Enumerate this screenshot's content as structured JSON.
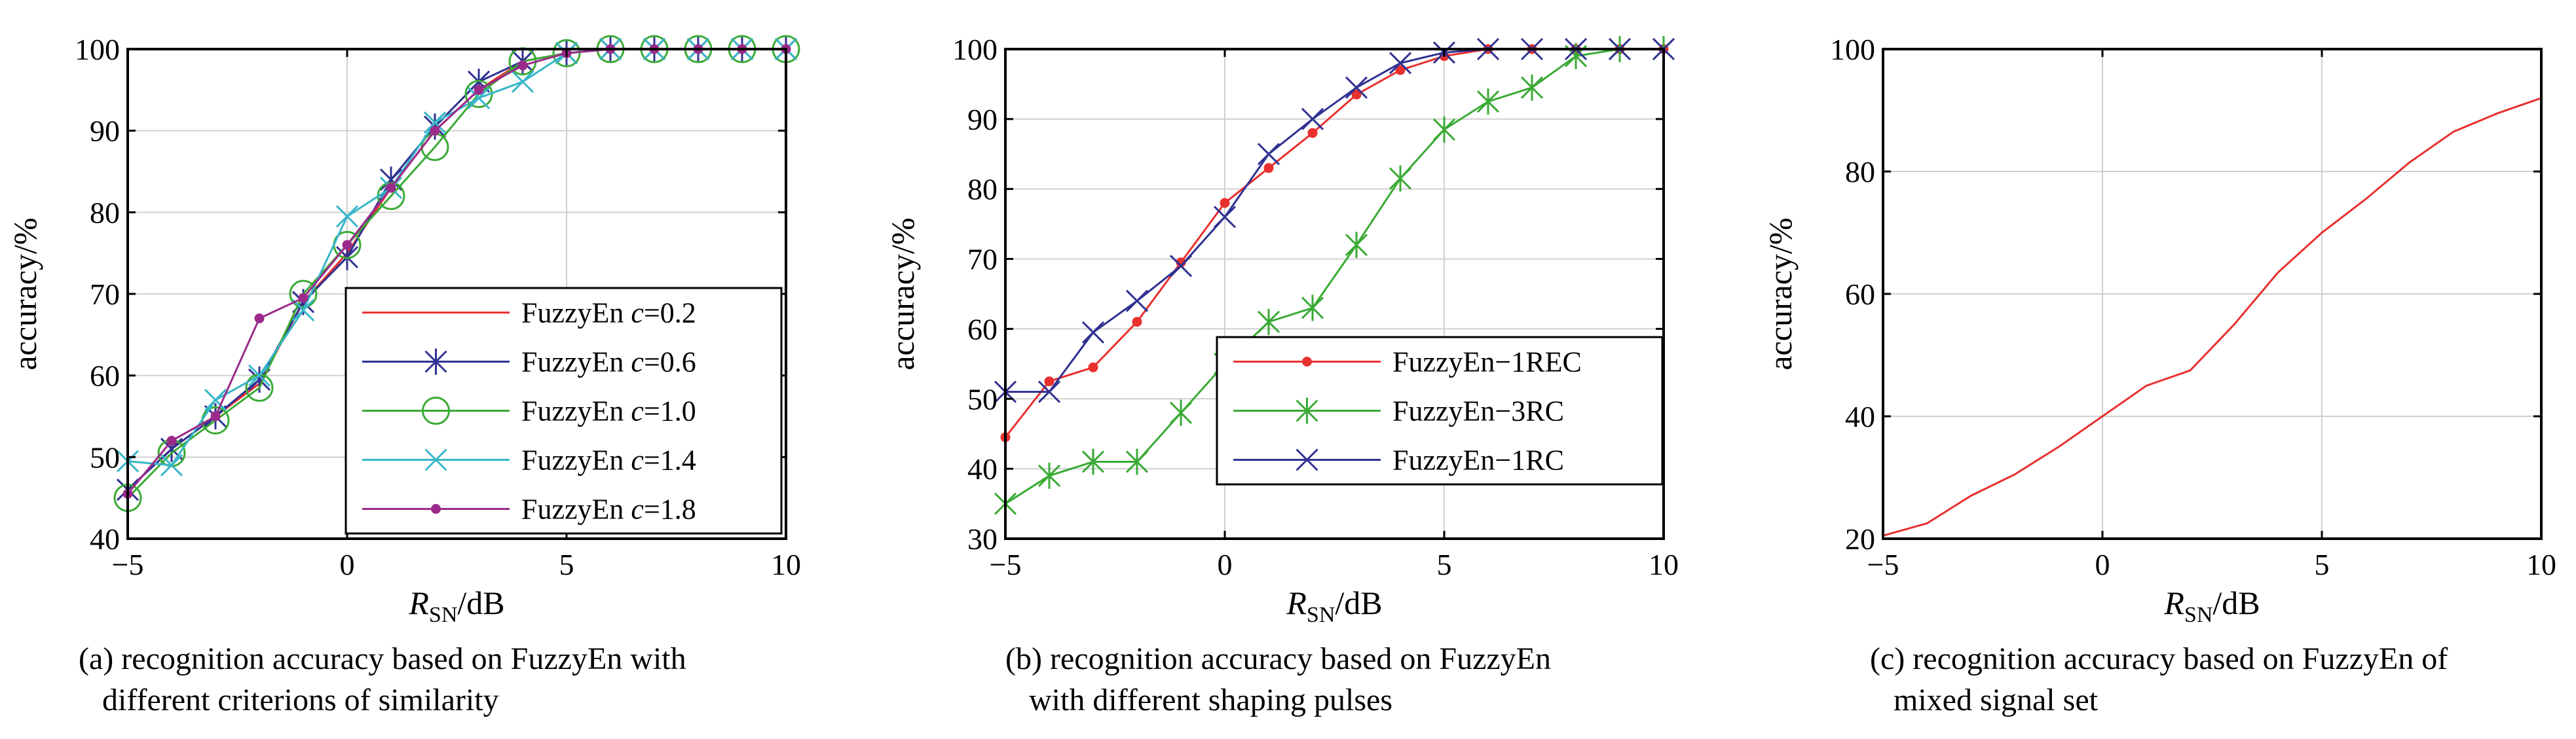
{
  "chart_data": [
    {
      "type": "line",
      "caption": [
        "(a) recognition accuracy based on FuzzyEn with",
        "different criterions of similarity"
      ],
      "xlabel": {
        "main": "R",
        "sub": "SN",
        "unit": "/dB"
      },
      "ylabel": "accuracy/%",
      "xlim": [
        -5,
        10
      ],
      "ylim": [
        40,
        100
      ],
      "xticks": [
        -5,
        0,
        5,
        10
      ],
      "yticks": [
        40,
        50,
        60,
        70,
        80,
        90,
        100
      ],
      "xtick_labels": [
        "−5",
        "0",
        "5",
        "10"
      ],
      "ytick_labels": [
        "40",
        "50",
        "60",
        "70",
        "80",
        "90",
        "100"
      ],
      "grid": true,
      "legend_position": "bottom-right",
      "x": [
        -5,
        -4,
        -3,
        -2,
        -1,
        0,
        1,
        2,
        3,
        4,
        5,
        6,
        7,
        8,
        9,
        10
      ],
      "series": [
        {
          "name": "FuzzyEn c=0.2",
          "name_parts": [
            "FuzzyEn ",
            "c",
            "=0.2"
          ],
          "color": "#e8312f",
          "marker": "none",
          "values": [
            46,
            51,
            55,
            59,
            69,
            75,
            83,
            90,
            95,
            98.5,
            99.5,
            100,
            100,
            100,
            100,
            100
          ]
        },
        {
          "name": "FuzzyEn c=0.6",
          "name_parts": [
            "FuzzyEn ",
            "c",
            "=0.6"
          ],
          "color": "#2f3192",
          "marker": "asterisk",
          "values": [
            46,
            51,
            55,
            59.5,
            69,
            74.5,
            84,
            90.5,
            96,
            98.5,
            99.5,
            100,
            100,
            100,
            100,
            100
          ]
        },
        {
          "name": "FuzzyEn c=1.0",
          "name_parts": [
            "FuzzyEn ",
            "c",
            "=1.0"
          ],
          "color": "#3aaa35",
          "marker": "circle",
          "values": [
            45,
            50.5,
            54.5,
            58.5,
            70,
            76,
            82,
            88,
            94.5,
            98.5,
            99.5,
            100,
            100,
            100,
            100,
            100
          ]
        },
        {
          "name": "FuzzyEn c=1.4",
          "name_parts": [
            "FuzzyEn ",
            "c",
            "=1.4"
          ],
          "color": "#38b6c8",
          "marker": "x",
          "values": [
            49.5,
            49,
            57,
            60,
            68,
            79.5,
            83,
            91,
            94,
            96,
            99.5,
            100,
            100,
            100,
            100,
            100
          ]
        },
        {
          "name": "FuzzyEn c=1.8",
          "name_parts": [
            "FuzzyEn ",
            "c",
            "=1.8"
          ],
          "color": "#9c2a8a",
          "marker": "dot",
          "values": [
            45.5,
            52,
            55,
            67,
            69.5,
            76,
            83,
            90,
            95,
            98,
            99.5,
            100,
            100,
            100,
            100,
            100
          ]
        }
      ]
    },
    {
      "type": "line",
      "caption": [
        "(b) recognition accuracy based on FuzzyEn",
        "with different shaping pulses"
      ],
      "xlabel": {
        "main": "R",
        "sub": "SN",
        "unit": "/dB"
      },
      "ylabel": "accuracy/%",
      "xlim": [
        -5,
        10
      ],
      "ylim": [
        30,
        100
      ],
      "xticks": [
        -5,
        0,
        5,
        10
      ],
      "yticks": [
        30,
        40,
        50,
        60,
        70,
        80,
        90,
        100
      ],
      "xtick_labels": [
        "−5",
        "0",
        "5",
        "10"
      ],
      "ytick_labels": [
        "30",
        "40",
        "50",
        "60",
        "70",
        "80",
        "90",
        "100"
      ],
      "grid": true,
      "legend_position": "bottom-right",
      "x": [
        -5,
        -4,
        -3,
        -2,
        -1,
        0,
        1,
        2,
        3,
        4,
        5,
        6,
        7,
        8,
        9,
        10
      ],
      "series": [
        {
          "name": "FuzzyEn−1REC",
          "name_parts": [
            "FuzzyEn−1REC"
          ],
          "color": "#e8312f",
          "marker": "dot",
          "values": [
            44.5,
            52.5,
            54.5,
            61,
            69.5,
            78,
            83,
            88,
            93.5,
            97,
            99,
            100,
            100,
            100,
            100,
            100
          ]
        },
        {
          "name": "FuzzyEn−3RC",
          "name_parts": [
            "FuzzyEn−3RC"
          ],
          "color": "#3aaa35",
          "marker": "asterisk",
          "values": [
            35,
            39,
            41,
            41,
            48,
            55,
            61,
            63,
            72,
            81.5,
            88.5,
            92.5,
            94.5,
            99,
            100,
            100
          ]
        },
        {
          "name": "FuzzyEn−1RC",
          "name_parts": [
            "FuzzyEn−1RC"
          ],
          "color": "#2f3192",
          "marker": "x",
          "values": [
            51,
            51,
            59.5,
            64,
            69,
            76,
            85,
            90,
            94.5,
            98,
            99.5,
            100,
            100,
            100,
            100,
            100
          ]
        }
      ]
    },
    {
      "type": "line",
      "caption": [
        "(c) recognition accuracy based on FuzzyEn of",
        "mixed signal set"
      ],
      "xlabel": {
        "main": "R",
        "sub": "SN",
        "unit": "/dB"
      },
      "ylabel": "accuracy/%",
      "xlim": [
        -5,
        10
      ],
      "ylim": [
        20,
        100
      ],
      "xticks": [
        -5,
        0,
        5,
        10
      ],
      "yticks": [
        20,
        40,
        60,
        80,
        100
      ],
      "xtick_labels": [
        "−5",
        "0",
        "5",
        "10"
      ],
      "ytick_labels": [
        "20",
        "40",
        "60",
        "80",
        "100"
      ],
      "grid": true,
      "legend_position": "none",
      "x": [
        -5,
        -4,
        -3,
        -2,
        -1,
        0,
        1,
        2,
        3,
        4,
        5,
        6,
        7,
        8,
        9,
        10
      ],
      "series": [
        {
          "color": "#e8312f",
          "marker": "none",
          "values": [
            20.5,
            22.5,
            27,
            30.5,
            35,
            40,
            45,
            47.5,
            55,
            63.5,
            70,
            75.5,
            81.5,
            86.5,
            89.5,
            92
          ]
        }
      ]
    }
  ]
}
